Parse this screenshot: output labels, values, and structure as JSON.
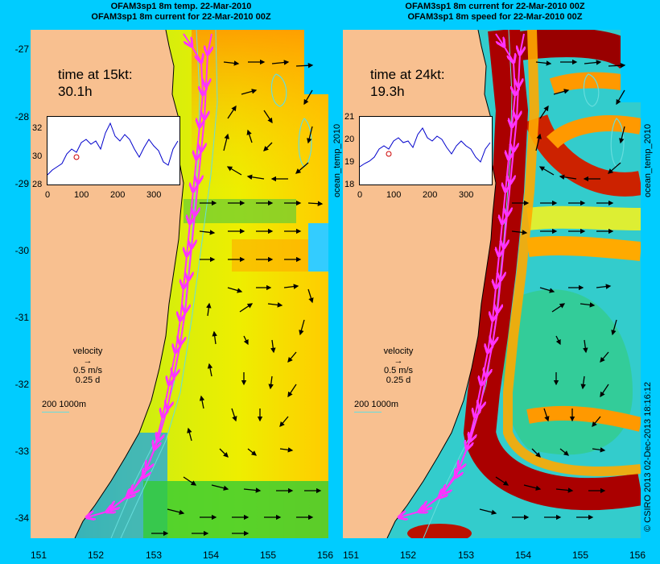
{
  "left_panel": {
    "title_line1": "OFAM3sp1 8m temp. 22-Mar-2010",
    "title_line2": "OFAM3sp1 8m current for 22-Mar-2010 00Z",
    "time_label": "time at 15kt:",
    "time_value": "30.1h",
    "inset_yticks": [
      "32",
      "30",
      "28"
    ],
    "inset_xticks": [
      "0",
      "100",
      "200",
      "300"
    ],
    "velocity_label": "velocity",
    "velocity_speed": "0.5 m/s",
    "velocity_time": "0.25 d",
    "depth_scale": "200  1000m"
  },
  "right_panel": {
    "title_line1": "OFAM3sp1 8m current for 22-Mar-2010 00Z",
    "title_line2": "OFAM3sp1 8m speed for 22-Mar-2010 00Z",
    "time_label": "time at 24kt:",
    "time_value": "19.3h",
    "inset_yticks": [
      "21",
      "20",
      "19",
      "18"
    ],
    "inset_xticks": [
      "0",
      "100",
      "200",
      "300"
    ],
    "velocity_label": "velocity",
    "velocity_speed": "0.5 m/s",
    "velocity_time": "0.25 d",
    "depth_scale": "200  1000m"
  },
  "side_label_left": "ocean_temp_2010",
  "side_label_right": "ocean_temp_2010",
  "credit": "© CSIRO 2013   02-Dec-2013 18:16:12",
  "lat_ticks": [
    "-27",
    "-28",
    "-29",
    "-30",
    "-31",
    "-32",
    "-33",
    "-34"
  ],
  "lon_ticks": [
    "151",
    "152",
    "153",
    "154",
    "155",
    "156"
  ],
  "colors": {
    "background": "#00ccff",
    "land": "#f8c090",
    "route": "#ff33ff",
    "contour": "#66dddd"
  }
}
